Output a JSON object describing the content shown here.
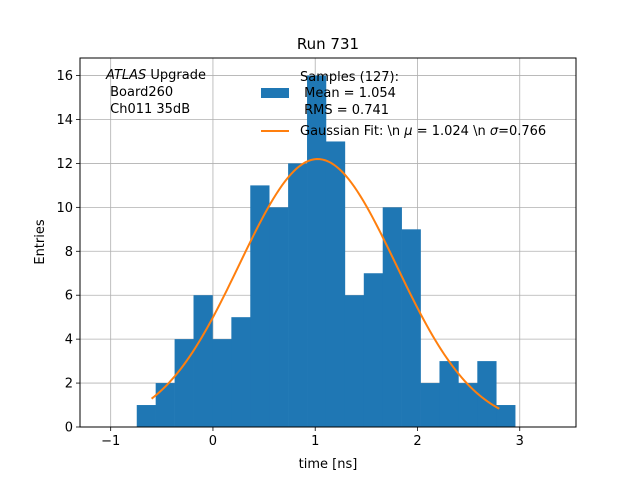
{
  "chart_data": {
    "type": "bar",
    "title": "Run 731",
    "xlabel": "time [ns]",
    "ylabel": "Entries",
    "xlim": [
      -1.3,
      3.55
    ],
    "ylim": [
      0,
      16.8
    ],
    "grid": true,
    "xticks": [
      -1,
      0,
      1,
      2,
      3
    ],
    "xtick_labels": [
      "−1",
      "0",
      "1",
      "2",
      "3"
    ],
    "yticks": [
      0,
      2,
      4,
      6,
      8,
      10,
      12,
      14,
      16
    ],
    "ytick_labels": [
      "0",
      "2",
      "4",
      "6",
      "8",
      "10",
      "12",
      "14",
      "16"
    ],
    "bin_width": 0.185,
    "bin_edges": [
      -0.745,
      -0.56,
      -0.375,
      -0.19,
      -0.005,
      0.18,
      0.365,
      0.55,
      0.735,
      0.92,
      1.105,
      1.29,
      1.475,
      1.66,
      1.845,
      2.03,
      2.215,
      2.4,
      2.585,
      2.77,
      2.955
    ],
    "counts": [
      1,
      2,
      4,
      6,
      4,
      5,
      11,
      10,
      12,
      16,
      13,
      6,
      7,
      10,
      9,
      2,
      3,
      2,
      3,
      1
    ],
    "bar_color": "#1f77b4",
    "fit": {
      "mu": 1.024,
      "sigma": 0.766,
      "amplitude": 12.2,
      "x_range": [
        -0.6,
        2.8
      ],
      "color": "#ff7f0e"
    },
    "annotation": {
      "line1_italic": "ATLAS",
      "line1_rest": " Upgrade",
      "line2": " Board260",
      "line3": " Ch011 35dB"
    },
    "legend": {
      "position": "top-center",
      "samples_line1": "Samples (127):",
      "samples_line2": " Mean = 1.054",
      "samples_line3": " RMS = 0.741",
      "fit_label_prefix": "Gaussian Fit: \\n ",
      "fit_mu_symbol": "μ",
      "fit_mu_value": " = 1.024 \\n ",
      "fit_sigma_symbol": "σ",
      "fit_sigma_value": "=0.766"
    }
  }
}
